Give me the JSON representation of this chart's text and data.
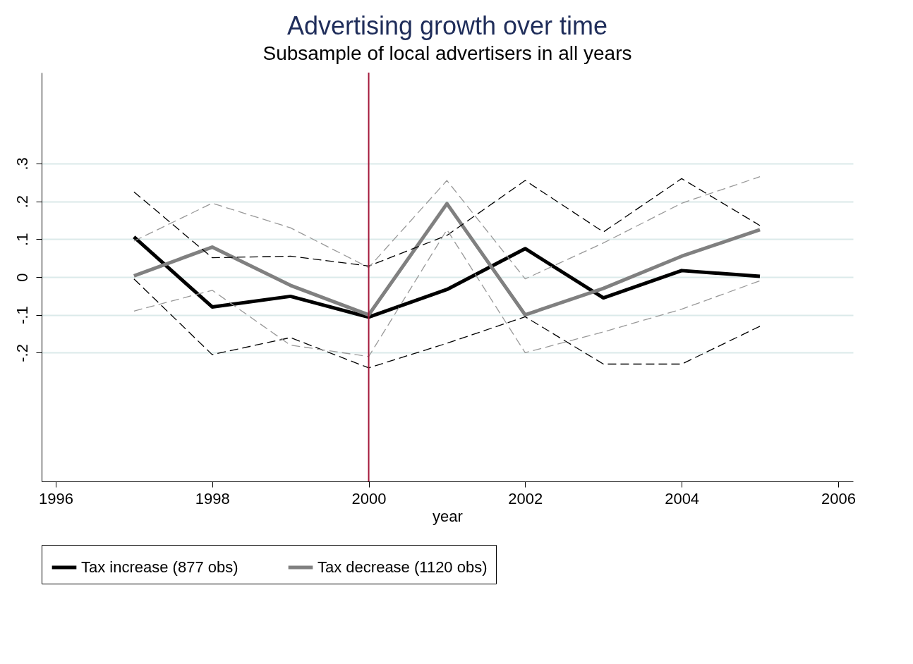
{
  "chart_data": {
    "type": "line",
    "title": "Advertising growth over time",
    "subtitle": "Subsample of local advertisers in all years",
    "xlabel": "year",
    "x": [
      1997,
      1998,
      1999,
      2000,
      2001,
      2002,
      2003,
      2004,
      2005
    ],
    "xlim": [
      1995.82,
      2006.19
    ],
    "xticks": [
      1996,
      1998,
      2000,
      2002,
      2004,
      2006
    ],
    "ylim": [
      -0.54,
      0.54
    ],
    "yticks": [
      {
        "value": -0.2,
        "label": "-.2"
      },
      {
        "value": -0.1,
        "label": "-.1"
      },
      {
        "value": 0,
        "label": "0"
      },
      {
        "value": 0.1,
        "label": ".1"
      },
      {
        "value": 0.2,
        "label": ".2"
      },
      {
        "value": 0.3,
        "label": ".3"
      }
    ],
    "series": [
      {
        "name": "Tax increase (877 obs)",
        "color": "#000000",
        "values": [
          0.106,
          -0.079,
          -0.051,
          -0.106,
          -0.033,
          0.075,
          -0.055,
          0.017,
          0.002
        ]
      },
      {
        "name": "Tax decrease (1120 obs)",
        "color": "#808080",
        "values": [
          0.003,
          0.079,
          -0.022,
          -0.1,
          0.194,
          -0.1,
          -0.03,
          0.055,
          0.125
        ]
      },
      {
        "color": "#000000",
        "line_style": "dashed",
        "values": [
          -0.005,
          -0.205,
          -0.16,
          -0.24,
          -0.175,
          -0.105,
          -0.23,
          -0.23,
          -0.13
        ]
      },
      {
        "color": "#000000",
        "line_style": "dashed",
        "values": [
          0.225,
          0.051,
          0.055,
          0.029,
          0.11,
          0.255,
          0.119,
          0.26,
          0.136
        ]
      },
      {
        "color": "#999999",
        "line_style": "dashed",
        "values": [
          -0.09,
          -0.035,
          -0.18,
          -0.21,
          0.125,
          -0.2,
          -0.145,
          -0.085,
          -0.01
        ]
      },
      {
        "color": "#999999",
        "line_style": "dashed",
        "values": [
          0.095,
          0.195,
          0.13,
          0.025,
          0.255,
          -0.005,
          0.09,
          0.195,
          0.265
        ]
      }
    ],
    "ref_lines": [
      {
        "axis": "x",
        "value": 2000,
        "color": "#a3173a"
      }
    ],
    "grid": "y",
    "legend": "bottom",
    "line_style": "solid",
    "marker": "none"
  }
}
